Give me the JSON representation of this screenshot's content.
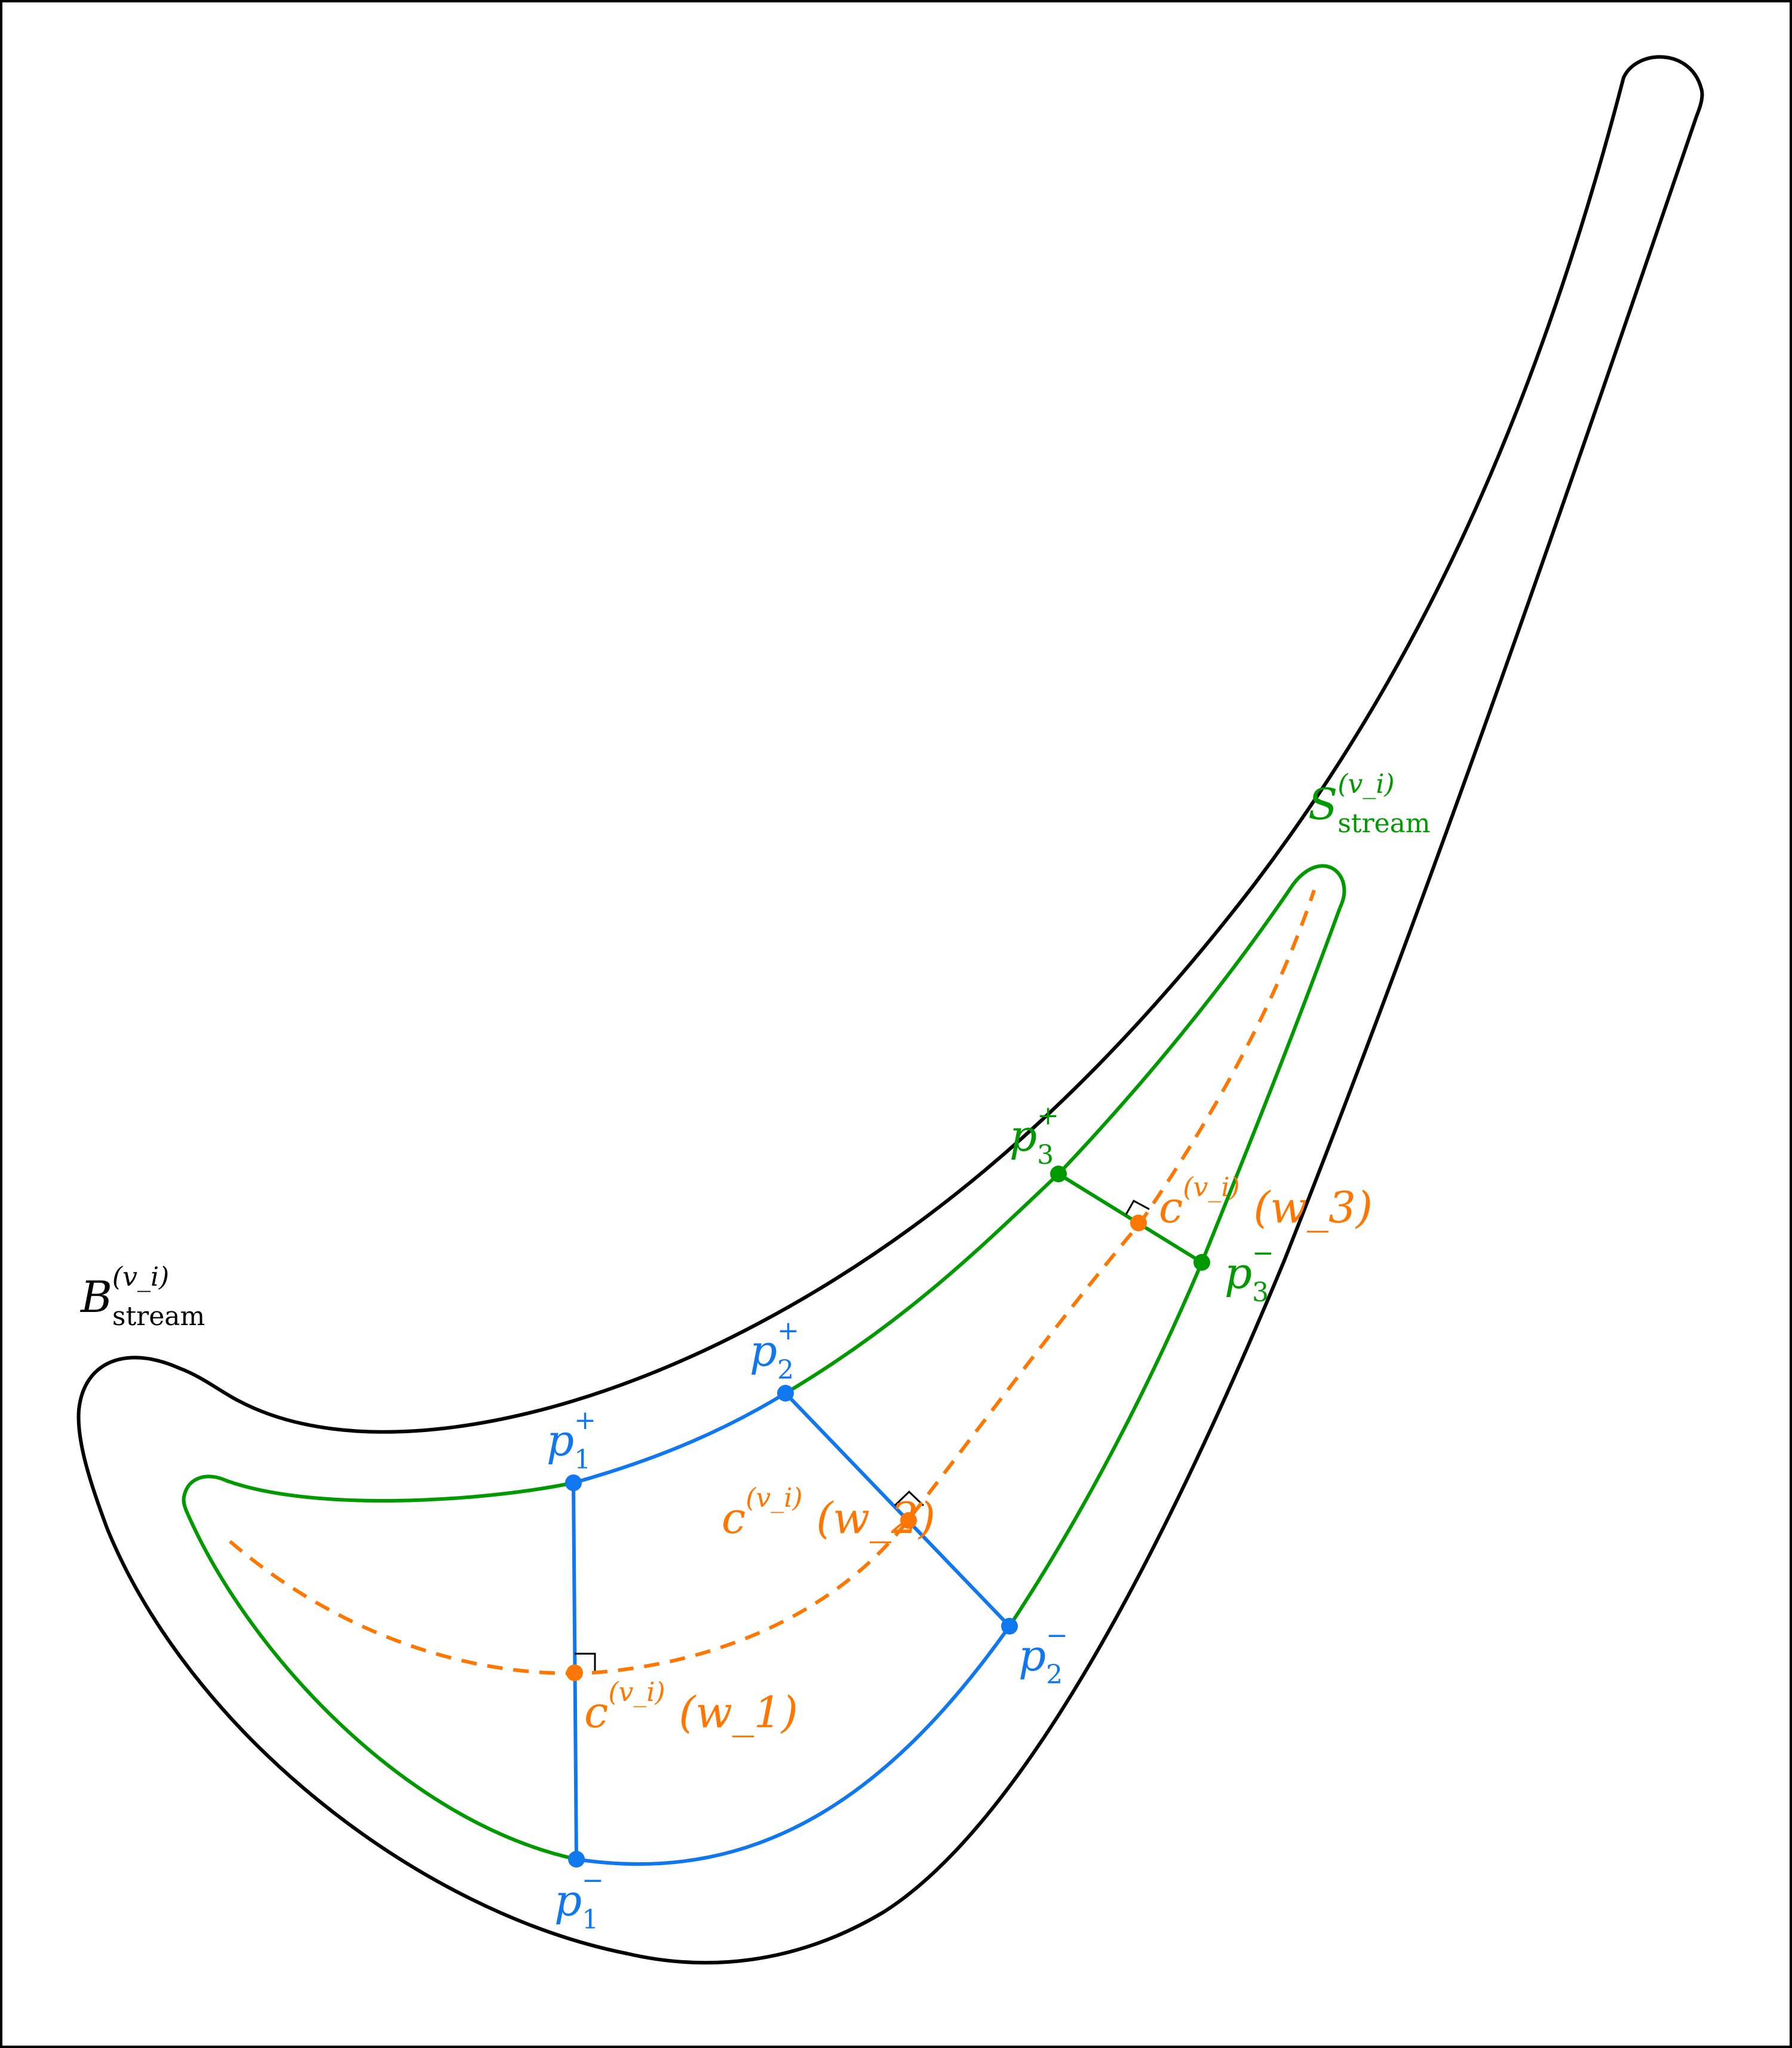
{
  "colors": {
    "outline": "#000000",
    "stream_set": "#009900",
    "cross_sections": "#1177ee",
    "center_curve": "#ff7700"
  },
  "labels": {
    "B_stream": {
      "base": "B",
      "sup": "(v_i)",
      "sub": "stream"
    },
    "S_stream": {
      "base": "S",
      "sup": "(v_i)",
      "sub": "stream"
    },
    "p1_plus": {
      "base": "p",
      "sub": "1",
      "sup": "+"
    },
    "p1_minus": {
      "base": "p",
      "sub": "1",
      "sup": "−"
    },
    "p2_plus": {
      "base": "p",
      "sub": "2",
      "sup": "+"
    },
    "p2_minus": {
      "base": "p",
      "sub": "2",
      "sup": "−"
    },
    "p3_plus": {
      "base": "p",
      "sub": "3",
      "sup": "+"
    },
    "p3_minus": {
      "base": "p",
      "sub": "3",
      "sup": "−"
    },
    "c_w1": {
      "base": "c",
      "sup": "(v_i)",
      "arg": "(w_1)"
    },
    "c_w2": {
      "base": "c",
      "sup": "(v_i)",
      "arg": "(w_2)"
    },
    "c_w3": {
      "base": "c",
      "sup": "(v_i)",
      "arg": "(w_3)"
    }
  }
}
